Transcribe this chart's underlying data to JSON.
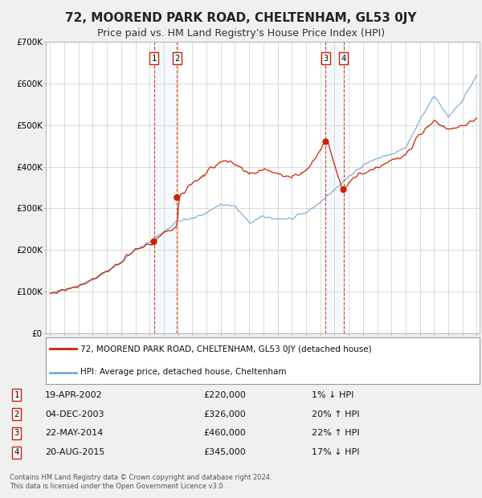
{
  "title": "72, MOOREND PARK ROAD, CHELTENHAM, GL53 0JY",
  "subtitle": "Price paid vs. HM Land Registry's House Price Index (HPI)",
  "title_fontsize": 11,
  "subtitle_fontsize": 9,
  "hpi_color": "#7aadd4",
  "price_color": "#cc2200",
  "background_color": "#f0f0f0",
  "plot_bg_color": "#ffffff",
  "grid_color": "#cccccc",
  "ylim": [
    0,
    700000
  ],
  "yticks": [
    0,
    100000,
    200000,
    300000,
    400000,
    500000,
    600000,
    700000
  ],
  "ytick_labels": [
    "£0",
    "£100K",
    "£200K",
    "£300K",
    "£400K",
    "£500K",
    "£600K",
    "£700K"
  ],
  "legend_label_price": "72, MOOREND PARK ROAD, CHELTENHAM, GL53 0JY (detached house)",
  "legend_label_hpi": "HPI: Average price, detached house, Cheltenham",
  "transactions": [
    {
      "num": 1,
      "date": "19-APR-2002",
      "price": 220000,
      "pct": "1%",
      "dir": "↓",
      "year": 2002.3
    },
    {
      "num": 2,
      "date": "04-DEC-2003",
      "price": 326000,
      "pct": "20%",
      "dir": "↑",
      "year": 2003.92
    },
    {
      "num": 3,
      "date": "22-MAY-2014",
      "price": 460000,
      "pct": "22%",
      "dir": "↑",
      "year": 2014.38
    },
    {
      "num": 4,
      "date": "20-AUG-2015",
      "price": 345000,
      "pct": "17%",
      "dir": "↓",
      "year": 2015.63
    }
  ],
  "footnote": "Contains HM Land Registry data © Crown copyright and database right 2024.\nThis data is licensed under the Open Government Licence v3.0.",
  "x_start_year": 1995,
  "x_end_year": 2025,
  "hpi_key_years": [
    1995,
    1996,
    1997,
    1998,
    1999,
    2000,
    2001,
    2002,
    2003,
    2004,
    2005,
    2006,
    2007,
    2008,
    2009,
    2010,
    2011,
    2012,
    2013,
    2014,
    2015,
    2016,
    2017,
    2018,
    2019,
    2020,
    2021,
    2022,
    2023,
    2024,
    2025
  ],
  "hpi_key_values": [
    95000,
    105000,
    115000,
    130000,
    150000,
    170000,
    200000,
    220000,
    245000,
    270000,
    275000,
    290000,
    310000,
    305000,
    265000,
    280000,
    275000,
    275000,
    290000,
    315000,
    345000,
    375000,
    405000,
    420000,
    430000,
    445000,
    510000,
    570000,
    520000,
    560000,
    620000
  ],
  "price_key_years": [
    1995,
    1996,
    1997,
    1998,
    1999,
    2000,
    2001,
    2002.2,
    2002.35,
    2003.9,
    2004.1,
    2005,
    2006,
    2007,
    2008,
    2009,
    2010,
    2011,
    2012,
    2013,
    2014.3,
    2014.5,
    2015.55,
    2015.7,
    2016,
    2017,
    2018,
    2019,
    2020,
    2021,
    2022,
    2023,
    2024,
    2025
  ],
  "price_key_values": [
    95000,
    105000,
    115000,
    130000,
    150000,
    170000,
    200000,
    215000,
    225000,
    258000,
    330000,
    360000,
    385000,
    415000,
    405000,
    380000,
    395000,
    385000,
    375000,
    390000,
    455000,
    465000,
    345000,
    350000,
    365000,
    385000,
    400000,
    415000,
    425000,
    480000,
    510000,
    490000,
    500000,
    510000
  ]
}
